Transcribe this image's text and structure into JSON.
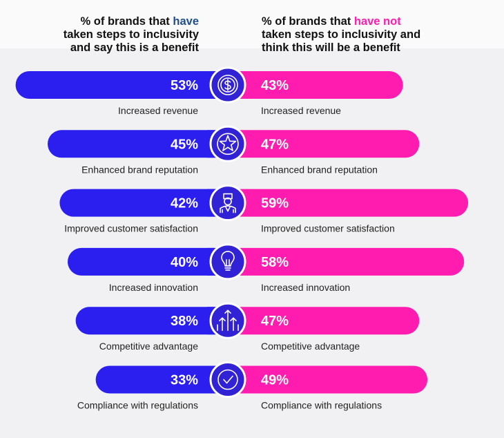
{
  "header": {
    "left_part1": "% of brands that ",
    "left_highlight": "have",
    "left_part2": "taken steps to inclusivity",
    "left_part3": "and say this is a benefit",
    "right_part1": "% of brands that ",
    "right_highlight": "have not",
    "right_part2": "taken steps to inclusivity and",
    "right_part3": "think this will be a benefit"
  },
  "colors": {
    "left_bar": "#2b1ff0",
    "right_bar": "#ff1cae",
    "icon_circle": "#3222d6"
  },
  "chart_data": {
    "type": "bar",
    "orientation": "horizontal-diverging",
    "unit": "%",
    "categories": [
      "Increased revenue",
      "Enhanced brand reputation",
      "Improved customer satisfaction",
      "Increased innovation",
      "Competitive advantage",
      "Compliance with regulations"
    ],
    "icons": [
      "dollar-coin-icon",
      "star-badge-icon",
      "customer-icon",
      "lightbulb-icon",
      "growth-arrows-icon",
      "checkmark-icon"
    ],
    "series": [
      {
        "name": "% of brands that have taken steps to inclusivity and say this is a benefit",
        "values": [
          53,
          45,
          42,
          40,
          38,
          33
        ],
        "labels": [
          "53%",
          "45%",
          "42%",
          "40%",
          "38%",
          "33%"
        ]
      },
      {
        "name": "% of brands that have not taken steps to inclusivity and think this will be a benefit",
        "values": [
          43,
          47,
          59,
          58,
          47,
          49
        ],
        "labels": [
          "43%",
          "47%",
          "59%",
          "58%",
          "47%",
          "49%"
        ]
      }
    ]
  }
}
